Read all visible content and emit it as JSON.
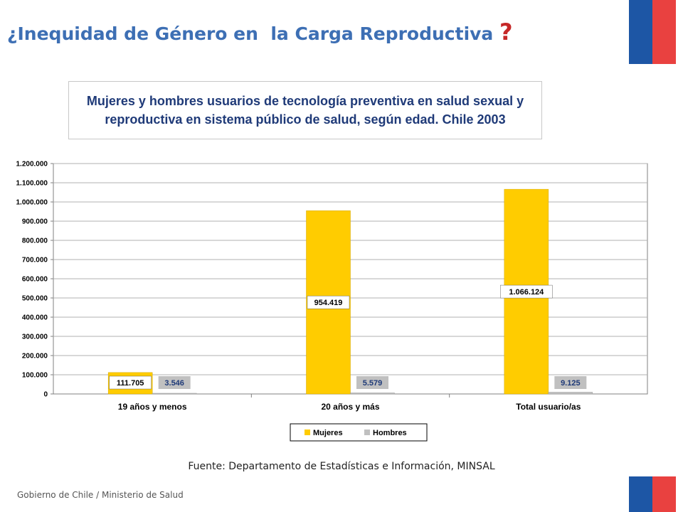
{
  "header": {
    "title": "¿Inequidad de Género en  la Carga Reproductiva",
    "title_mark": "?"
  },
  "colors": {
    "title": "#3d6fb4",
    "flag_blue": "#1d56a5",
    "flag_red": "#e94140",
    "mujeres": "#ffcc00",
    "hombres": "#c0c0c0"
  },
  "chart_data": {
    "type": "bar",
    "title": "Mujeres y hombres usuarios de tecnología preventiva en salud sexual y reproductiva en sistema público de salud, según edad. Chile 2003",
    "categories": [
      "19 años y menos",
      "20 años y más",
      "Total usuario/as"
    ],
    "series": [
      {
        "name": "Mujeres",
        "values": [
          111705,
          954419,
          1066124
        ],
        "labels": [
          "111.705",
          "954.419",
          "1.066.124"
        ]
      },
      {
        "name": "Hombres",
        "values": [
          3546,
          5579,
          9125
        ],
        "labels": [
          "3.546",
          "5.579",
          "9.125"
        ]
      }
    ],
    "ylim": [
      0,
      1200000
    ],
    "yticks": [
      0,
      100000,
      200000,
      300000,
      400000,
      500000,
      600000,
      700000,
      800000,
      900000,
      1000000,
      1100000,
      1200000
    ],
    "ytick_labels": [
      "0",
      "100.000",
      "200.000",
      "300.000",
      "400.000",
      "500.000",
      "600.000",
      "700.000",
      "800.000",
      "900.000",
      "1.000.000",
      "1.100.000",
      "1.200.000"
    ],
    "xlabel": "",
    "ylabel": "",
    "grid": true,
    "legend": "bottom"
  },
  "source": "Fuente: Departamento de Estadísticas e Información, MINSAL",
  "footer": "Gobierno de Chile / Ministerio de Salud"
}
